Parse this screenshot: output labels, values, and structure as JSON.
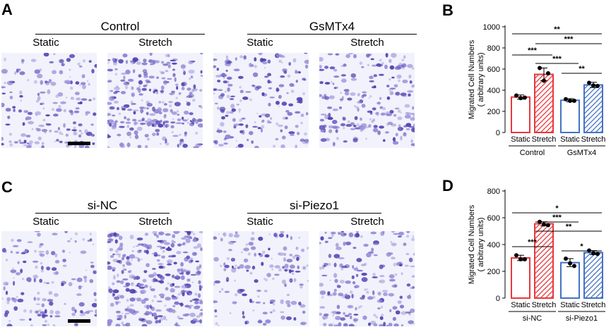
{
  "panels": {
    "A": {
      "letter": "A",
      "groups": [
        {
          "title": "Control",
          "conditions": [
            "Static",
            "Stretch"
          ]
        },
        {
          "title": "GsMTx4",
          "conditions": [
            "Static",
            "Stretch"
          ]
        }
      ]
    },
    "C": {
      "letter": "C",
      "groups": [
        {
          "title": "si-NC",
          "conditions": [
            "Static",
            "Stretch"
          ]
        },
        {
          "title": "si-Piezo1",
          "conditions": [
            "Static",
            "Stretch"
          ]
        }
      ]
    }
  },
  "colors": {
    "red": "#e8383d",
    "blue": "#4472c4",
    "stain_dark": "#4b3fb0",
    "stain_light": "#8f86d6"
  },
  "chart_data": [
    {
      "type": "bar",
      "panel_letter": "B",
      "ylabel": "Migrated Cell Numbers",
      "ylabel2": "( arbitrary units)",
      "ylim": [
        0,
        1000
      ],
      "yticks": [
        0,
        200,
        400,
        600,
        800,
        1000
      ],
      "categories": [
        "Static",
        "Stretch",
        "Static",
        "Stretch"
      ],
      "groups": [
        {
          "label": "Control",
          "span": [
            0,
            1
          ]
        },
        {
          "label": "GsMTx4",
          "span": [
            2,
            3
          ]
        }
      ],
      "values": [
        335,
        550,
        305,
        450
      ],
      "errors": [
        20,
        60,
        15,
        25
      ],
      "points": [
        [
          350,
          330,
          325
        ],
        [
          610,
          560,
          490
        ],
        [
          315,
          300,
          300
        ],
        [
          470,
          440,
          445
        ]
      ],
      "colors": [
        "red",
        "red",
        "blue",
        "blue"
      ],
      "hatched": [
        false,
        true,
        false,
        true
      ],
      "significance": [
        {
          "from": 0,
          "to": 3,
          "label": "**"
        },
        {
          "from": 0,
          "to": 1,
          "label": "***"
        },
        {
          "from": 1,
          "to": 2,
          "label": "***"
        },
        {
          "from": 1,
          "to": 3,
          "label": "***"
        },
        {
          "from": 2,
          "to": 3,
          "label": "**"
        }
      ]
    },
    {
      "type": "bar",
      "panel_letter": "D",
      "ylabel": "Migrated Cell Numbers",
      "ylabel2": "( arbitrary units)",
      "ylim": [
        0,
        800
      ],
      "yticks": [
        0,
        200,
        400,
        600,
        800
      ],
      "categories": [
        "Static",
        "Stretch",
        "Static",
        "Stretch"
      ],
      "groups": [
        {
          "label": "si-NC",
          "span": [
            0,
            1
          ]
        },
        {
          "label": "si-Piezo1",
          "span": [
            2,
            3
          ]
        }
      ],
      "values": [
        300,
        555,
        265,
        340
      ],
      "errors": [
        20,
        15,
        30,
        15
      ],
      "points": [
        [
          320,
          290,
          290
        ],
        [
          570,
          545,
          550
        ],
        [
          295,
          240,
          260
        ],
        [
          355,
          330,
          335
        ]
      ],
      "colors": [
        "red",
        "red",
        "blue",
        "blue"
      ],
      "hatched": [
        false,
        true,
        false,
        true
      ],
      "significance": [
        {
          "from": 0,
          "to": 3,
          "label": "*"
        },
        {
          "from": 0,
          "to": 1,
          "label": "***"
        },
        {
          "from": 1,
          "to": 3,
          "label": "**"
        },
        {
          "from": 1,
          "to": 2,
          "label": "***"
        },
        {
          "from": 2,
          "to": 3,
          "label": "*"
        }
      ]
    }
  ]
}
